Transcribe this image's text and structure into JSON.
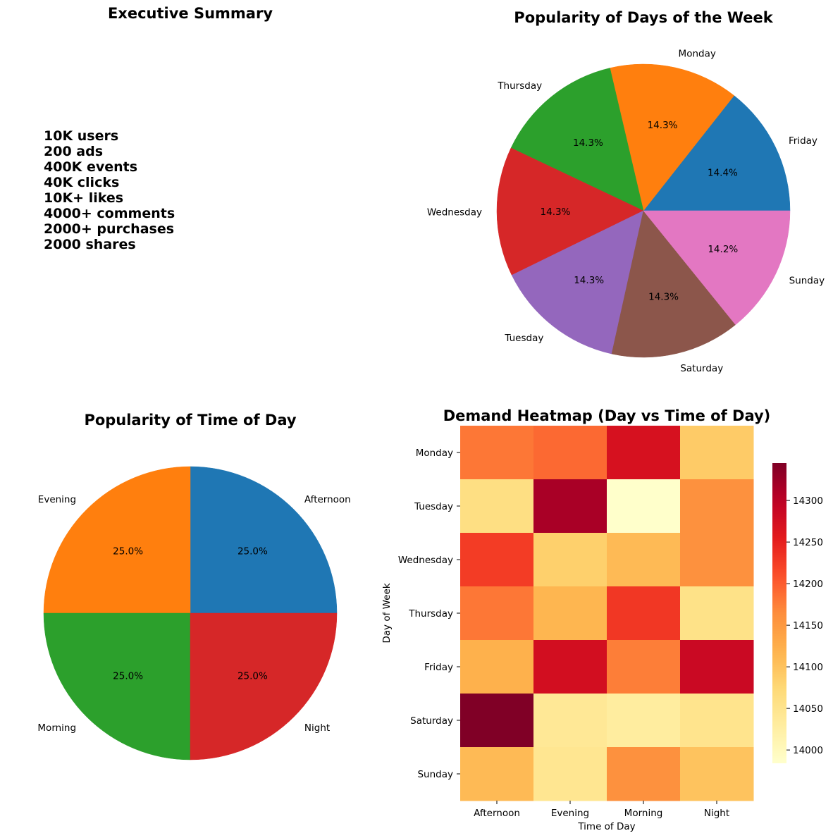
{
  "executive_summary": {
    "title": "Executive Summary",
    "lines": [
      "10K users",
      "200 ads",
      "400K events",
      "40K clicks",
      "10K+ likes",
      "4000+ comments",
      "2000+ purchases",
      "2000 shares"
    ]
  },
  "chart_data": [
    {
      "type": "pie",
      "title": "Popularity of Days of the Week",
      "labels": [
        "Friday",
        "Monday",
        "Thursday",
        "Wednesday",
        "Tuesday",
        "Saturday",
        "Sunday"
      ],
      "values": [
        14.4,
        14.3,
        14.3,
        14.3,
        14.3,
        14.3,
        14.2
      ],
      "autopct": [
        "14.4%",
        "14.3%",
        "14.3%",
        "14.3%",
        "14.3%",
        "14.3%",
        "14.2%"
      ],
      "colors": [
        "#1f77b4",
        "#ff7f0e",
        "#2ca02c",
        "#d62728",
        "#9467bd",
        "#8c564b",
        "#e377c2"
      ]
    },
    {
      "type": "pie",
      "title": "Popularity of Time of Day",
      "labels": [
        "Afternoon",
        "Evening",
        "Morning",
        "Night"
      ],
      "values": [
        25.0,
        25.0,
        25.0,
        25.0
      ],
      "autopct": [
        "25.0%",
        "25.0%",
        "25.0%",
        "25.0%"
      ],
      "colors": [
        "#1f77b4",
        "#ff7f0e",
        "#2ca02c",
        "#d62728"
      ]
    },
    {
      "type": "heatmap",
      "title": "Demand Heatmap (Day vs Time of Day)",
      "xlabel": "Time of Day",
      "ylabel": "Day of Week",
      "x": [
        "Afternoon",
        "Evening",
        "Morning",
        "Night"
      ],
      "y": [
        "Monday",
        "Tuesday",
        "Wednesday",
        "Thursday",
        "Friday",
        "Saturday",
        "Sunday"
      ],
      "values": [
        [
          14180,
          14190,
          14270,
          14090
        ],
        [
          14060,
          14315,
          13985,
          14160
        ],
        [
          14225,
          14085,
          14110,
          14160
        ],
        [
          14180,
          14115,
          14230,
          14055
        ],
        [
          14120,
          14275,
          14175,
          14285
        ],
        [
          14345,
          14040,
          14030,
          14050
        ],
        [
          14110,
          14045,
          14160,
          14100
        ]
      ],
      "colormap": "YlOrRd",
      "colorbar": {
        "min": 13984,
        "max": 14345,
        "ticks": [
          14000,
          14050,
          14100,
          14150,
          14200,
          14250,
          14300
        ]
      }
    }
  ]
}
